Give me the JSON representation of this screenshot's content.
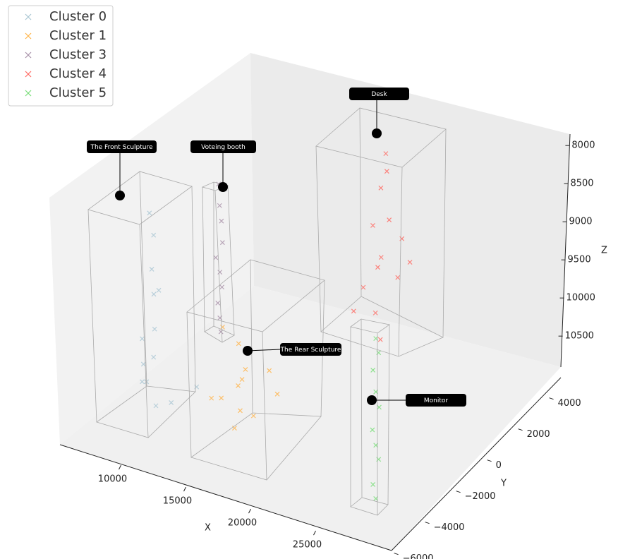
{
  "chart_data": {
    "type": "scatter3d",
    "x_label": "X",
    "y_label": "Y",
    "z_label": "Z",
    "xlim": [
      5300,
      30800
    ],
    "ylim": [
      -6200,
      4700
    ],
    "zlim": [
      10890,
      7840
    ],
    "xticks": [
      10000,
      15000,
      20000,
      25000
    ],
    "yticks": [
      {
        "value": -6000,
        "label": "−6000"
      },
      {
        "value": -4000,
        "label": "−4000"
      },
      {
        "value": -2000,
        "label": "−2000"
      },
      0,
      2000,
      4000
    ],
    "zticks": [
      8000,
      8500,
      9000,
      9500,
      10000,
      10500
    ],
    "grid": false,
    "legend": "upper left",
    "series": [
      {
        "name": "Cluster 0",
        "color": "#a9c6d3",
        "x": [
          9800,
          10000,
          10100,
          9900,
          10200,
          10000,
          9700,
          10300,
          8500,
          9000,
          11000,
          12000,
          9600,
          10400
        ],
        "y": [
          -4200,
          -4100,
          -4300,
          -4000,
          -4200,
          -4100,
          -4300,
          -4200,
          -3500,
          -4000,
          -3800,
          -3000,
          -4500,
          -4100
        ],
        "z": [
          8000,
          8300,
          8700,
          9100,
          9500,
          9900,
          10200,
          10500,
          10200,
          10300,
          10500,
          10400,
          9600,
          9000
        ]
      },
      {
        "name": "Cluster 1",
        "color": "#ffb347",
        "x": [
          14000,
          15000,
          16000,
          15500,
          14500,
          17000,
          13500,
          15000,
          16500,
          14800,
          15200,
          17500
        ],
        "y": [
          -3000,
          -2800,
          -3200,
          -3000,
          -3500,
          -2500,
          -3300,
          -2700,
          -3100,
          -2900,
          -3000,
          -2400
        ],
        "z": [
          9500,
          9700,
          9900,
          10100,
          10300,
          10000,
          10400,
          10600,
          10500,
          10800,
          10200,
          10300
        ]
      },
      {
        "name": "Cluster 3",
        "color": "#a790a8",
        "x": [
          11900,
          12100,
          12000,
          12200,
          11800,
          12000,
          12100,
          11900,
          12000,
          12200
        ],
        "y": [
          -1500,
          -1600,
          -1400,
          -1500,
          -1600,
          -1500,
          -1450,
          -1550,
          -1500,
          -1600
        ],
        "z": [
          8050,
          8300,
          8550,
          8800,
          9000,
          9200,
          9400,
          9600,
          9800,
          9950
        ]
      },
      {
        "name": "Cluster 4",
        "color": "#ff6961",
        "x": [
          20000,
          20200,
          19500,
          20500,
          19000,
          21000,
          20000,
          19500,
          20800,
          18500,
          21500,
          19800,
          18000,
          20300
        ],
        "y": [
          2500,
          2400,
          2600,
          2300,
          2500,
          2700,
          2200,
          2400,
          2600,
          2300,
          2800,
          2000,
          2100,
          1900
        ],
        "z": [
          8000,
          8200,
          8500,
          8800,
          9000,
          9100,
          9300,
          9500,
          9600,
          9800,
          9400,
          10000,
          10100,
          10300
        ]
      },
      {
        "name": "Cluster 5",
        "color": "#77dd77",
        "x": [
          27000,
          27100,
          26900,
          27000,
          27200,
          26800,
          27000,
          27100,
          26900,
          27000
        ],
        "y": [
          -4000,
          -3900,
          -4100,
          -4000,
          -3950,
          -4050,
          -4000,
          -3900,
          -4100,
          -4000
        ],
        "z": [
          8700,
          8900,
          9100,
          9400,
          9600,
          9900,
          10100,
          10300,
          10600,
          10800
        ]
      }
    ],
    "annotations": [
      {
        "text": "The Front Sculpture"
      },
      {
        "text": "Voteing booth"
      },
      {
        "text": "Desk"
      },
      {
        "text": "The Rear Sculpture"
      },
      {
        "text": "Monitor"
      }
    ]
  }
}
